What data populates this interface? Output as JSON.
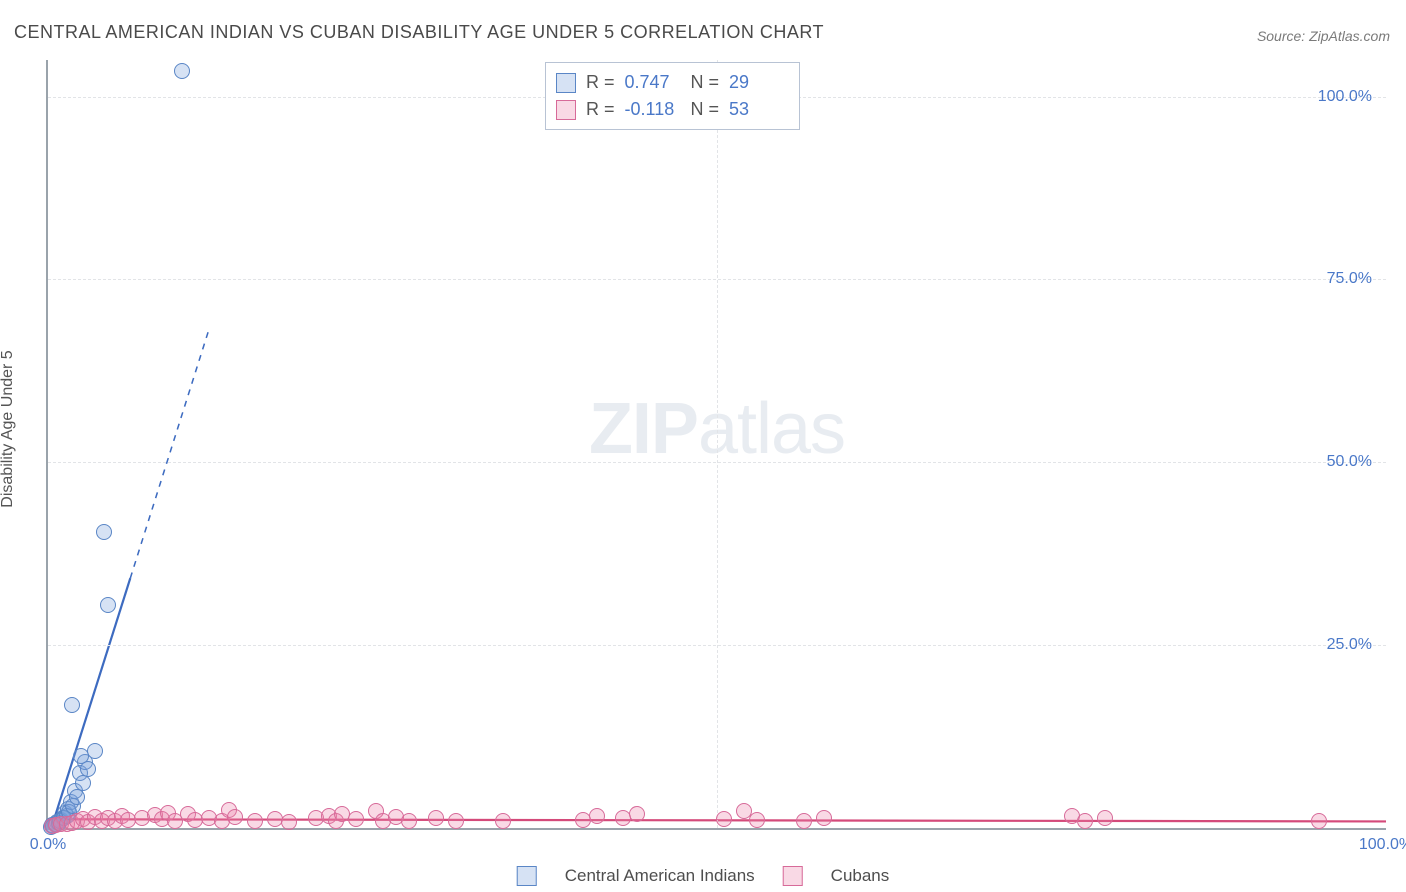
{
  "title": "CENTRAL AMERICAN INDIAN VS CUBAN DISABILITY AGE UNDER 5 CORRELATION CHART",
  "source": "Source: ZipAtlas.com",
  "y_axis_label": "Disability Age Under 5",
  "watermark_bold": "ZIP",
  "watermark_rest": "atlas",
  "chart": {
    "type": "scatter",
    "xlim": [
      0,
      100
    ],
    "ylim": [
      0,
      105
    ],
    "x_ticks": [
      0,
      100
    ],
    "x_tick_labels": [
      "0.0%",
      "100.0%"
    ],
    "y_ticks": [
      25,
      50,
      75,
      100
    ],
    "y_tick_labels": [
      "25.0%",
      "50.0%",
      "75.0%",
      "100.0%"
    ],
    "x_grid": [
      50
    ],
    "grid_color": "#e2e4e7",
    "axis_color": "#9aa3ab",
    "background": "#ffffff",
    "marker_radius": 8,
    "marker_border": 1.5,
    "series": [
      {
        "name": "Central American Indians",
        "fill": "rgba(120,160,220,0.30)",
        "stroke": "#5a86c6",
        "R_label": "R  =",
        "R_value": "0.747",
        "N_label": "N  =",
        "N_value": "29",
        "trend": {
          "x1": 0.3,
          "y1": 0.3,
          "x2": 12,
          "y2": 68,
          "dash_from_pct": 0.5,
          "stroke": "#3d6bc0",
          "width": 2.2
        },
        "points": [
          [
            0.3,
            0.4
          ],
          [
            0.5,
            0.6
          ],
          [
            0.7,
            0.8
          ],
          [
            1.0,
            1.1
          ],
          [
            1.1,
            1.4
          ],
          [
            1.3,
            2.0
          ],
          [
            1.5,
            2.6
          ],
          [
            1.7,
            3.5
          ],
          [
            2.0,
            5.0
          ],
          [
            2.4,
            7.5
          ],
          [
            2.8,
            9.0
          ],
          [
            2.5,
            9.8
          ],
          [
            3.5,
            10.5
          ],
          [
            1.8,
            16.8
          ],
          [
            4.5,
            30.5
          ],
          [
            4.2,
            40.5
          ],
          [
            10.0,
            103.5
          ],
          [
            0.2,
            0.2
          ],
          [
            0.4,
            0.3
          ],
          [
            0.6,
            0.5
          ],
          [
            0.8,
            0.7
          ],
          [
            0.9,
            0.9
          ],
          [
            1.2,
            1.3
          ],
          [
            1.4,
            1.7
          ],
          [
            1.6,
            2.2
          ],
          [
            1.9,
            3.0
          ],
          [
            2.2,
            4.2
          ],
          [
            2.6,
            6.1
          ],
          [
            3.0,
            8.0
          ]
        ]
      },
      {
        "name": "Cubans",
        "fill": "rgba(235,130,170,0.30)",
        "stroke": "#d76a99",
        "R_label": "R  =",
        "R_value": "-0.118",
        "N_label": "N  =",
        "N_value": "53",
        "trend": {
          "x1": 0,
          "y1": 1.2,
          "x2": 100,
          "y2": 0.9,
          "dash_from_pct": 1.0,
          "stroke": "#d44a7a",
          "width": 2.2
        },
        "points": [
          [
            0.3,
            0.3
          ],
          [
            0.6,
            0.4
          ],
          [
            1.0,
            0.5
          ],
          [
            1.4,
            0.6
          ],
          [
            1.8,
            0.7
          ],
          [
            2.2,
            0.9
          ],
          [
            2.6,
            1.2
          ],
          [
            3.0,
            0.8
          ],
          [
            3.5,
            1.5
          ],
          [
            4.0,
            1.0
          ],
          [
            4.5,
            1.3
          ],
          [
            5.0,
            0.9
          ],
          [
            5.5,
            1.6
          ],
          [
            6.0,
            1.1
          ],
          [
            7.0,
            1.4
          ],
          [
            8.0,
            1.8
          ],
          [
            8.5,
            1.2
          ],
          [
            9.0,
            2.0
          ],
          [
            9.5,
            1.0
          ],
          [
            10.5,
            1.9
          ],
          [
            11.0,
            1.1
          ],
          [
            12.0,
            1.3
          ],
          [
            13.0,
            0.9
          ],
          [
            13.5,
            2.5
          ],
          [
            14.0,
            1.5
          ],
          [
            15.5,
            1.0
          ],
          [
            17.0,
            1.2
          ],
          [
            18.0,
            0.8
          ],
          [
            20.0,
            1.4
          ],
          [
            21.0,
            1.7
          ],
          [
            21.5,
            1.0
          ],
          [
            22.0,
            1.9
          ],
          [
            23.0,
            1.2
          ],
          [
            24.5,
            2.3
          ],
          [
            25.0,
            1.0
          ],
          [
            26.0,
            1.5
          ],
          [
            27.0,
            1.0
          ],
          [
            29.0,
            1.3
          ],
          [
            30.5,
            1.0
          ],
          [
            34.0,
            1.0
          ],
          [
            40.0,
            1.1
          ],
          [
            41.0,
            1.7
          ],
          [
            43.0,
            1.3
          ],
          [
            44.0,
            1.9
          ],
          [
            50.5,
            1.2
          ],
          [
            52.0,
            2.3
          ],
          [
            53.0,
            1.1
          ],
          [
            56.5,
            0.9
          ],
          [
            58.0,
            1.3
          ],
          [
            76.5,
            1.6
          ],
          [
            77.5,
            1.0
          ],
          [
            79.0,
            1.4
          ],
          [
            95.0,
            1.0
          ]
        ]
      }
    ]
  },
  "legend_title_series1": "Central American Indians",
  "legend_title_series2": "Cubans",
  "colors": {
    "value_text": "#4a78c8",
    "title_text": "#4a4a4a",
    "source_text": "#7a7a7a"
  }
}
